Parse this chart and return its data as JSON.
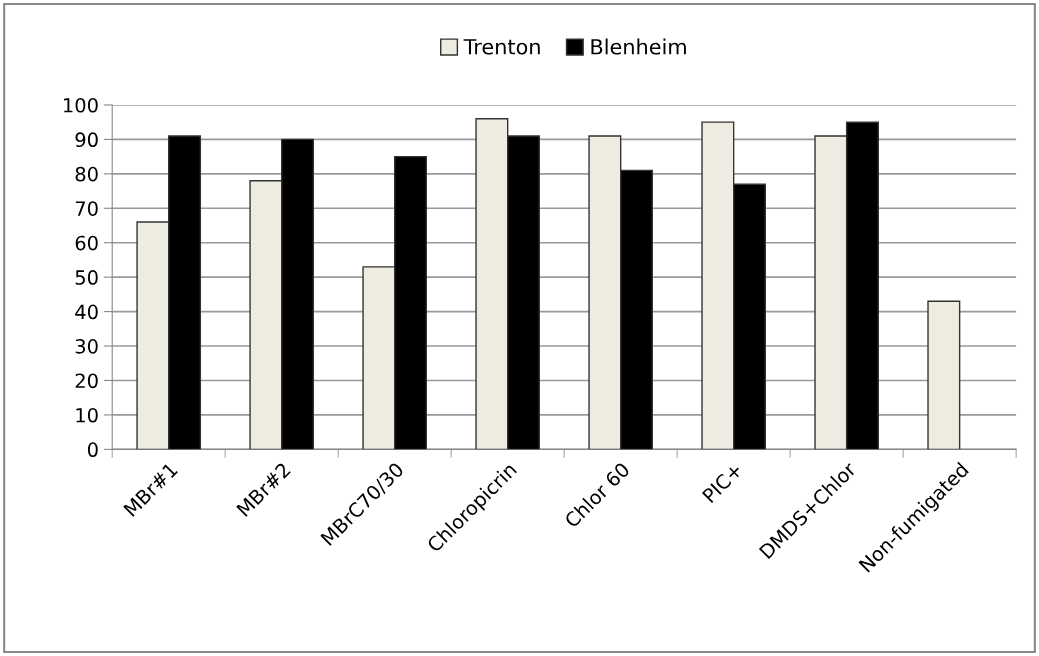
{
  "chart_data": {
    "type": "bar",
    "categories": [
      "MBr#1",
      "MBr#2",
      "MBrC70/30",
      "Chloropicrin",
      "Chlor 60",
      "PIC+",
      "DMDS+Chlor",
      "Non-fumigated"
    ],
    "series": [
      {
        "name": "Trenton",
        "color": "#eeebe0",
        "values": [
          66,
          78,
          53,
          96,
          91,
          95,
          91,
          43
        ]
      },
      {
        "name": "Blenheim",
        "color": "#000000",
        "values": [
          91,
          90,
          85,
          91,
          81,
          77,
          95,
          null
        ]
      }
    ],
    "ylim": [
      0,
      100
    ],
    "yticks": [
      0,
      10,
      20,
      30,
      40,
      50,
      60,
      70,
      80,
      90,
      100
    ],
    "grid": "y",
    "legend": "top"
  }
}
